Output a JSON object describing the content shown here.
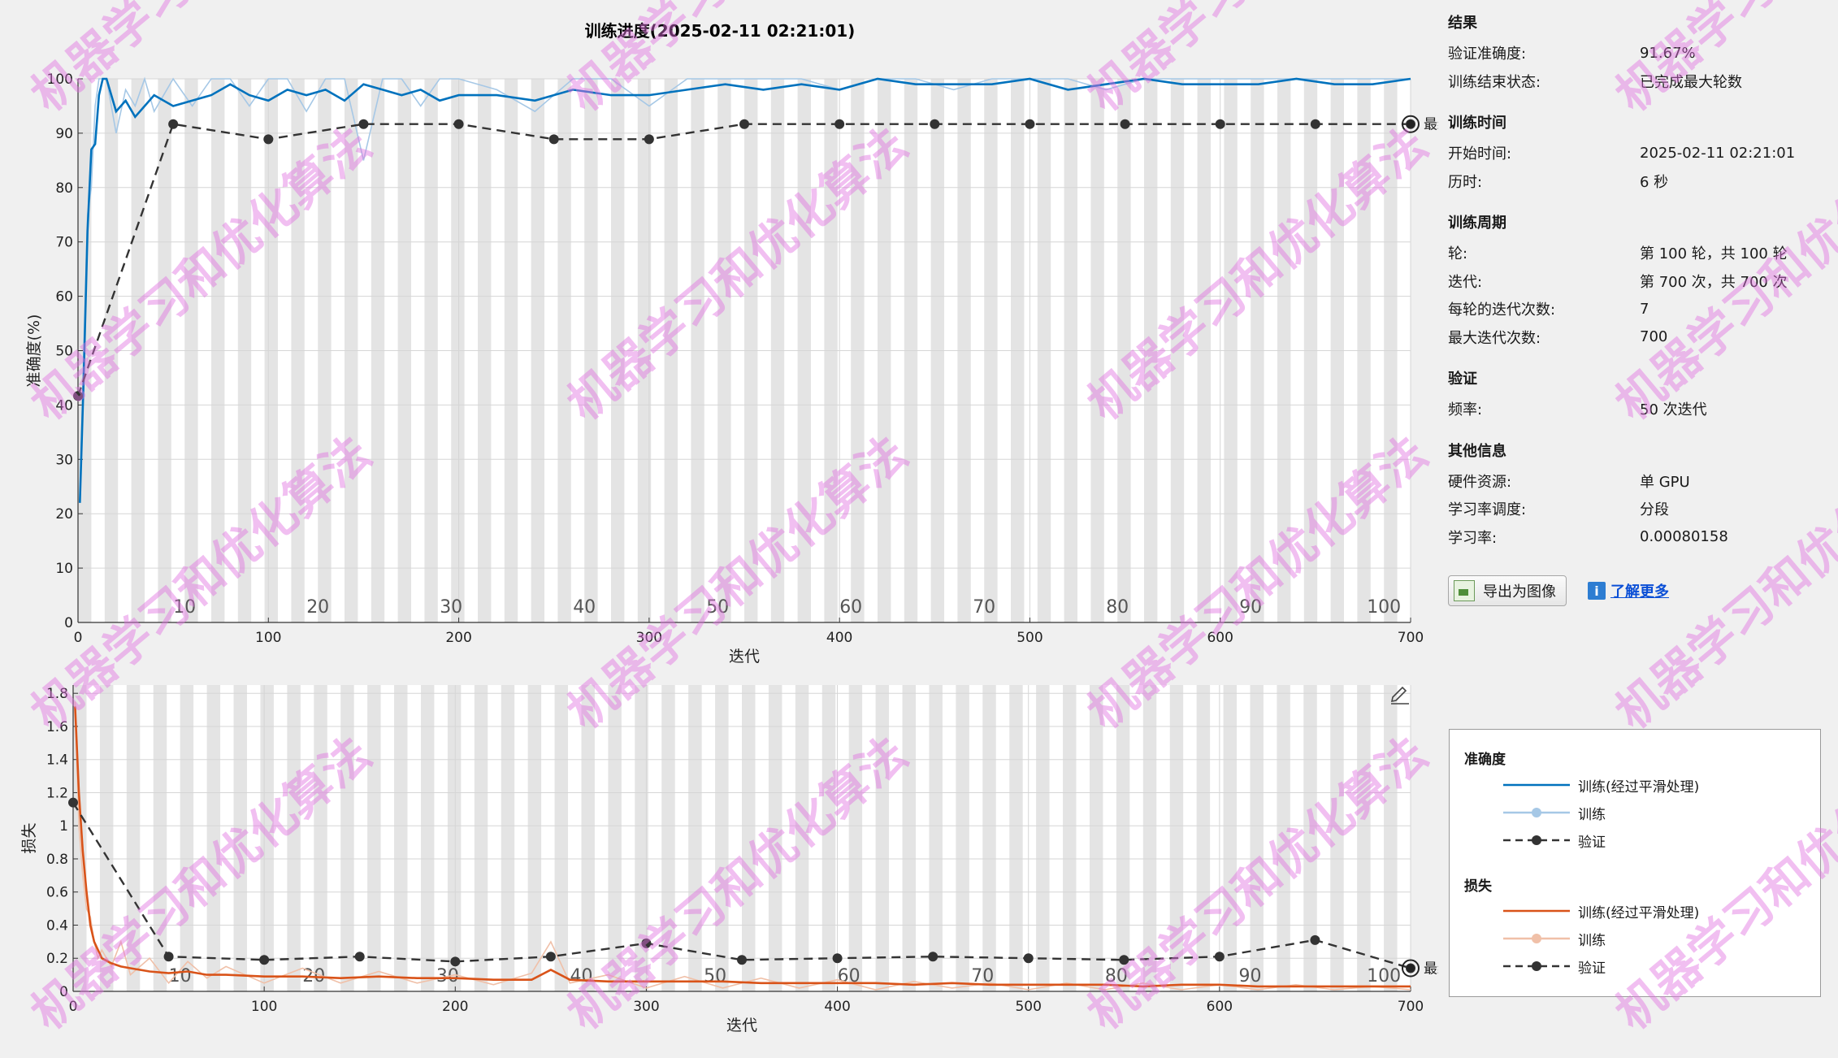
{
  "title": "训练进度(2025-02-11 02:21:01)",
  "accuracy_plot": {
    "ylabel": "准确度(%)",
    "xlabel": "迭代",
    "yticks": [
      "0",
      "10",
      "20",
      "30",
      "40",
      "50",
      "60",
      "70",
      "80",
      "90",
      "100"
    ],
    "xticks": [
      "0",
      "100",
      "200",
      "300",
      "400",
      "500",
      "600",
      "700"
    ],
    "epoch_labels": [
      "10",
      "20",
      "30",
      "40",
      "50",
      "60",
      "70",
      "80",
      "90",
      "100"
    ],
    "final_label": "最终"
  },
  "loss_plot": {
    "ylabel": "损失",
    "xlabel": "迭代",
    "yticks": [
      "0",
      "0.2",
      "0.4",
      "0.6",
      "0.8",
      "1",
      "1.2",
      "1.4",
      "1.6",
      "1.8"
    ],
    "xticks": [
      "0",
      "100",
      "200",
      "300",
      "400",
      "500",
      "600",
      "700"
    ],
    "epoch_labels": [
      "10",
      "20",
      "30",
      "40",
      "50",
      "60",
      "70",
      "80",
      "90",
      "100"
    ],
    "final_label": "最终"
  },
  "chart_data": [
    {
      "type": "line",
      "title": "训练进度(2025-02-11 02:21:01)",
      "xlabel": "迭代",
      "ylabel": "准确度(%)",
      "xlim": [
        0,
        700
      ],
      "ylim": [
        0,
        100
      ],
      "grid": true,
      "series": [
        {
          "name": "训练(经过平滑处理)",
          "color": "#0072bd",
          "x": [
            1,
            3,
            5,
            7,
            9,
            11,
            13,
            15,
            20,
            25,
            30,
            35,
            40,
            50,
            60,
            70,
            80,
            90,
            100,
            110,
            120,
            130,
            140,
            150,
            160,
            170,
            180,
            190,
            200,
            220,
            240,
            260,
            280,
            300,
            320,
            340,
            360,
            380,
            400,
            420,
            440,
            460,
            480,
            500,
            520,
            540,
            560,
            580,
            600,
            620,
            640,
            660,
            680,
            700
          ],
          "y": [
            22,
            45,
            72,
            87,
            88,
            97,
            100,
            100,
            94,
            96,
            93,
            95,
            97,
            95,
            96,
            97,
            99,
            97,
            96,
            98,
            97,
            98,
            96,
            99,
            98,
            97,
            98,
            96,
            97,
            97,
            96,
            98,
            97,
            97,
            98,
            99,
            98,
            99,
            98,
            100,
            99,
            99,
            99,
            100,
            98,
            99,
            100,
            99,
            99,
            99,
            100,
            99,
            99,
            100
          ]
        },
        {
          "name": "训练",
          "color": "#a6c8e6",
          "x": [
            1,
            3,
            5,
            7,
            9,
            11,
            13,
            15,
            20,
            25,
            30,
            35,
            40,
            50,
            60,
            70,
            80,
            90,
            100,
            110,
            120,
            130,
            140,
            150,
            160,
            170,
            180,
            190,
            200,
            220,
            240,
            260,
            280,
            300,
            320,
            340,
            360,
            380,
            400,
            420,
            440,
            460,
            480,
            500,
            520,
            540,
            560,
            580,
            600,
            620,
            640,
            660,
            680,
            700
          ],
          "y": [
            22,
            50,
            75,
            80,
            95,
            100,
            100,
            100,
            90,
            98,
            95,
            100,
            94,
            100,
            95,
            100,
            100,
            95,
            100,
            100,
            94,
            100,
            100,
            85,
            100,
            100,
            95,
            100,
            100,
            98,
            94,
            100,
            100,
            95,
            100,
            100,
            100,
            100,
            98,
            100,
            100,
            98,
            100,
            100,
            100,
            98,
            100,
            100,
            100,
            100,
            100,
            100,
            100,
            100
          ]
        },
        {
          "name": "验证",
          "color": "#333333",
          "x": [
            0,
            50,
            100,
            150,
            200,
            250,
            300,
            350,
            400,
            450,
            500,
            550,
            600,
            650,
            700
          ],
          "y": [
            41.67,
            91.67,
            88.89,
            91.67,
            91.67,
            88.89,
            88.89,
            91.67,
            91.67,
            91.67,
            91.67,
            91.67,
            91.67,
            91.67,
            91.67
          ]
        }
      ]
    },
    {
      "type": "line",
      "xlabel": "迭代",
      "ylabel": "损失",
      "xlim": [
        0,
        700
      ],
      "ylim": [
        0,
        1.85
      ],
      "grid": true,
      "series": [
        {
          "name": "训练(经过平滑处理)",
          "color": "#d95319",
          "x": [
            1,
            3,
            5,
            7,
            9,
            11,
            13,
            15,
            20,
            25,
            30,
            40,
            50,
            60,
            70,
            80,
            100,
            120,
            140,
            160,
            180,
            200,
            220,
            240,
            250,
            260,
            280,
            300,
            320,
            340,
            360,
            380,
            400,
            420,
            440,
            460,
            480,
            500,
            520,
            540,
            560,
            580,
            600,
            620,
            640,
            660,
            680,
            700
          ],
          "y": [
            1.72,
            1.2,
            0.85,
            0.6,
            0.4,
            0.3,
            0.25,
            0.2,
            0.17,
            0.15,
            0.14,
            0.12,
            0.11,
            0.12,
            0.1,
            0.1,
            0.09,
            0.09,
            0.08,
            0.09,
            0.08,
            0.08,
            0.07,
            0.07,
            0.13,
            0.07,
            0.06,
            0.06,
            0.06,
            0.06,
            0.05,
            0.05,
            0.05,
            0.05,
            0.04,
            0.05,
            0.04,
            0.04,
            0.04,
            0.04,
            0.03,
            0.04,
            0.04,
            0.03,
            0.03,
            0.03,
            0.03,
            0.03
          ]
        },
        {
          "name": "训练",
          "color": "#f0c0a8",
          "x": [
            1,
            3,
            5,
            7,
            9,
            11,
            13,
            15,
            20,
            25,
            30,
            40,
            50,
            60,
            70,
            80,
            100,
            120,
            140,
            160,
            180,
            200,
            220,
            240,
            250,
            260,
            280,
            300,
            320,
            340,
            360,
            380,
            400,
            420,
            440,
            460,
            480,
            500,
            520,
            540,
            560,
            580,
            600,
            620,
            640,
            660,
            680,
            700
          ],
          "y": [
            1.75,
            1.0,
            0.7,
            0.5,
            0.45,
            0.3,
            0.2,
            0.25,
            0.15,
            0.3,
            0.1,
            0.2,
            0.05,
            0.18,
            0.08,
            0.15,
            0.05,
            0.14,
            0.05,
            0.12,
            0.05,
            0.1,
            0.04,
            0.11,
            0.3,
            0.05,
            0.1,
            0.02,
            0.09,
            0.02,
            0.08,
            0.02,
            0.07,
            0.01,
            0.06,
            0.02,
            0.05,
            0.01,
            0.05,
            0.01,
            0.05,
            0.01,
            0.04,
            0.01,
            0.04,
            0.01,
            0.03,
            0.01
          ]
        },
        {
          "name": "验证",
          "color": "#333333",
          "x": [
            0,
            50,
            100,
            150,
            200,
            250,
            300,
            350,
            400,
            450,
            500,
            550,
            600,
            650,
            700
          ],
          "y": [
            1.14,
            0.21,
            0.19,
            0.21,
            0.18,
            0.21,
            0.29,
            0.19,
            0.2,
            0.21,
            0.2,
            0.19,
            0.21,
            0.31,
            0.14
          ]
        }
      ]
    }
  ],
  "info": {
    "results": {
      "title": "结果",
      "rows": [
        {
          "k": "验证准确度:",
          "v": "91.67%"
        },
        {
          "k": "训练结束状态:",
          "v": "已完成最大轮数"
        }
      ]
    },
    "time": {
      "title": "训练时间",
      "rows": [
        {
          "k": "开始时间:",
          "v": "2025-02-11 02:21:01"
        },
        {
          "k": "历时:",
          "v": "6 秒"
        }
      ]
    },
    "cycle": {
      "title": "训练周期",
      "rows": [
        {
          "k": "轮:",
          "v": "第 100 轮，共 100 轮"
        },
        {
          "k": "迭代:",
          "v": "第 700 次，共 700 次"
        },
        {
          "k": "每轮的迭代次数:",
          "v": "7"
        },
        {
          "k": "最大迭代次数:",
          "v": "700"
        }
      ]
    },
    "validation": {
      "title": "验证",
      "rows": [
        {
          "k": "频率:",
          "v": "50 次迭代"
        }
      ]
    },
    "other": {
      "title": "其他信息",
      "rows": [
        {
          "k": "硬件资源:",
          "v": "单 GPU"
        },
        {
          "k": "学习率调度:",
          "v": "分段"
        },
        {
          "k": "学习率:",
          "v": "0.00080158"
        }
      ]
    }
  },
  "buttons": {
    "export": "导出为图像",
    "learn_more": "了解更多"
  },
  "legend": {
    "accuracy_title": "准确度",
    "loss_title": "损失",
    "smoothed": "训练(经过平滑处理)",
    "train": "训练",
    "validation": "验证"
  },
  "watermark": "机器学习和优化算法",
  "colors": {
    "acc_smooth": "#0072bd",
    "acc_raw": "#a6c8e6",
    "loss_smooth": "#d95319",
    "loss_raw": "#f0c0a8",
    "val": "#333333",
    "epoch_band": "#e4e4e4",
    "watermark": "#e070e0"
  }
}
